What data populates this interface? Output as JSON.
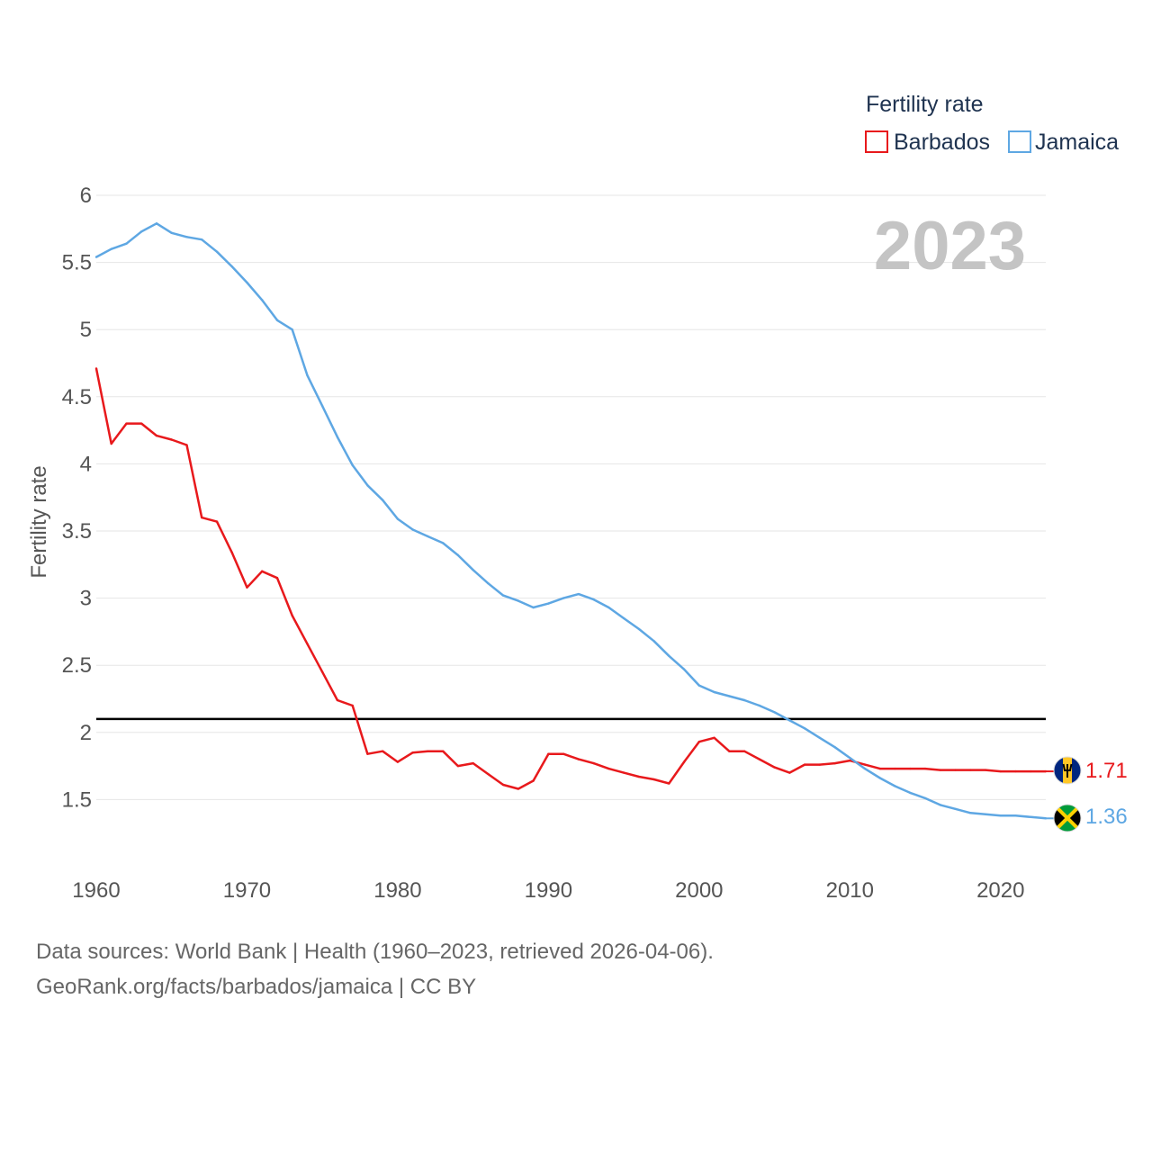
{
  "chart_data": {
    "type": "line",
    "title": "",
    "xlabel": "",
    "ylabel": "Fertility rate",
    "xlim": [
      1960,
      2023
    ],
    "ylim": [
      1.0,
      6.0
    ],
    "yticks": [
      1.5,
      2,
      2.5,
      3,
      3.5,
      4,
      4.5,
      5,
      5.5,
      6
    ],
    "ytick_labels": [
      "1.5",
      "2",
      "2.5",
      "3",
      "3.5",
      "4",
      "4.5",
      "5",
      "5.5",
      "6"
    ],
    "xticks": [
      1960,
      1970,
      1980,
      1990,
      2000,
      2010,
      2020
    ],
    "xtick_labels": [
      "1960",
      "1970",
      "1980",
      "1990",
      "2000",
      "2010",
      "2020"
    ],
    "grid": true,
    "legend_title": "Fertility rate",
    "year_label": "2023",
    "reference_line": {
      "y": 2.1,
      "color": "#000000"
    },
    "x": [
      1960,
      1961,
      1962,
      1963,
      1964,
      1965,
      1966,
      1967,
      1968,
      1969,
      1970,
      1971,
      1972,
      1973,
      1974,
      1975,
      1976,
      1977,
      1978,
      1979,
      1980,
      1981,
      1982,
      1983,
      1984,
      1985,
      1986,
      1987,
      1988,
      1989,
      1990,
      1991,
      1992,
      1993,
      1994,
      1995,
      1996,
      1997,
      1998,
      1999,
      2000,
      2001,
      2002,
      2003,
      2004,
      2005,
      2006,
      2007,
      2008,
      2009,
      2010,
      2011,
      2012,
      2013,
      2014,
      2015,
      2016,
      2017,
      2018,
      2019,
      2020,
      2021,
      2022,
      2023
    ],
    "series": [
      {
        "name": "Barbados",
        "color": "#e8191c",
        "end_label": "1.71",
        "values": [
          4.71,
          4.15,
          4.3,
          4.3,
          4.21,
          4.18,
          4.14,
          3.6,
          3.57,
          3.34,
          3.08,
          3.2,
          3.15,
          2.87,
          2.66,
          2.45,
          2.24,
          2.2,
          1.84,
          1.86,
          1.78,
          1.85,
          1.86,
          1.86,
          1.75,
          1.77,
          1.69,
          1.61,
          1.58,
          1.64,
          1.84,
          1.84,
          1.8,
          1.77,
          1.73,
          1.7,
          1.67,
          1.65,
          1.62,
          1.78,
          1.93,
          1.96,
          1.86,
          1.86,
          1.8,
          1.74,
          1.7,
          1.76,
          1.76,
          1.77,
          1.79,
          1.76,
          1.73,
          1.73,
          1.73,
          1.73,
          1.72,
          1.72,
          1.72,
          1.72,
          1.71,
          1.71,
          1.71,
          1.71
        ]
      },
      {
        "name": "Jamaica",
        "color": "#5ea7e3",
        "end_label": "1.36",
        "values": [
          5.54,
          5.6,
          5.64,
          5.73,
          5.79,
          5.72,
          5.69,
          5.67,
          5.58,
          5.47,
          5.35,
          5.22,
          5.07,
          5.0,
          4.66,
          4.43,
          4.2,
          3.99,
          3.84,
          3.73,
          3.59,
          3.51,
          3.46,
          3.41,
          3.32,
          3.21,
          3.11,
          3.02,
          2.98,
          2.93,
          2.96,
          3.0,
          3.03,
          2.99,
          2.93,
          2.85,
          2.77,
          2.68,
          2.57,
          2.47,
          2.35,
          2.3,
          2.27,
          2.24,
          2.2,
          2.15,
          2.09,
          2.03,
          1.96,
          1.89,
          1.81,
          1.73,
          1.66,
          1.6,
          1.55,
          1.51,
          1.46,
          1.43,
          1.4,
          1.39,
          1.38,
          1.38,
          1.37,
          1.36
        ]
      }
    ]
  },
  "footer": {
    "sources": "Data sources: World Bank | Health (1960–2023, retrieved 2026-04-06).",
    "credit": "GeoRank.org/facts/barbados/jamaica | CC BY"
  }
}
